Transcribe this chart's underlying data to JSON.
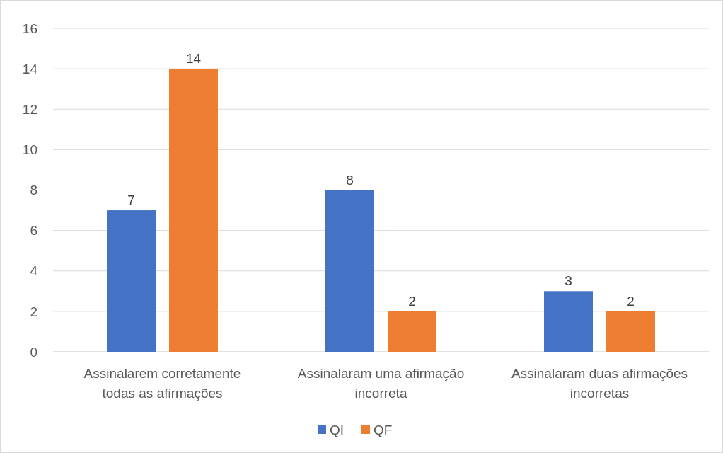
{
  "chart_data": {
    "type": "bar",
    "categories": [
      "Assinalarem corretamente todas as afirmações",
      "Assinalaram uma afirmação incorreta",
      "Assinalaram duas afirmações incorretas"
    ],
    "series": [
      {
        "name": "QI",
        "color": "#4472c4",
        "values": [
          7,
          8,
          3
        ]
      },
      {
        "name": "QF",
        "color": "#ed7d31",
        "values": [
          14,
          2,
          2
        ]
      }
    ],
    "ylim": [
      0,
      16
    ],
    "yticks": [
      0,
      2,
      4,
      6,
      8,
      10,
      12,
      14,
      16
    ],
    "grid": "y",
    "legend": "bottom",
    "data_labels": true
  }
}
